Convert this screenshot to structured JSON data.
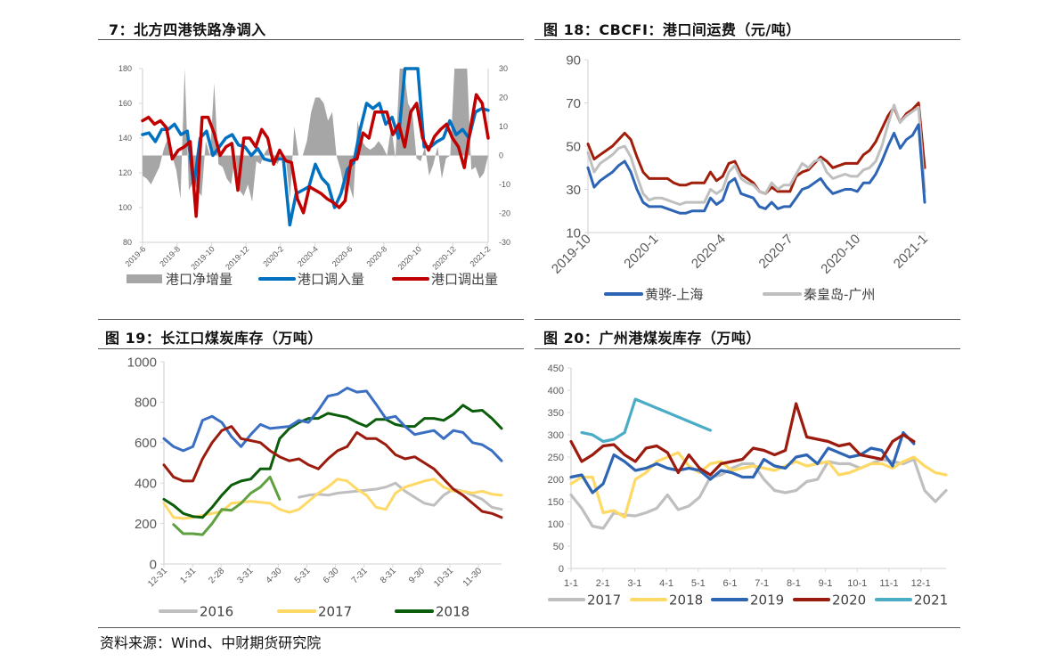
{
  "titles": {
    "c1": "7：北方四港铁路净调入",
    "c2": "图 18：CBCFI：港口间运费（元/吨）",
    "c3": "图 19：长江口煤炭库存（万吨）",
    "c4": "图 20：广州港煤炭库存（万吨）"
  },
  "source": "资料来源：Wind、中财期货研究院",
  "chart_data": [
    {
      "id": "c1",
      "type": "line",
      "title": "7：北方四港铁路净调入",
      "x_ticks": [
        "2019-6",
        "2019-8",
        "2019-10",
        "2019-12",
        "2020-2",
        "2020-4",
        "2020-6",
        "2020-8",
        "2020-10",
        "2020-12",
        "2021-2"
      ],
      "ylim": [
        80,
        180
      ],
      "y_ticks": [
        80,
        100,
        120,
        140,
        160,
        180
      ],
      "y2lim": [
        -30,
        30
      ],
      "y2_ticks": [
        -30,
        -20,
        -10,
        0,
        10,
        20,
        30
      ],
      "series": [
        {
          "name": "港口净增量",
          "axis": "right",
          "kind": "area",
          "color": "#A6A6A6",
          "values": [
            -7,
            -8,
            -10,
            -7,
            -4,
            2,
            6,
            0,
            -5,
            -15,
            30,
            -12,
            -9,
            -12,
            -14,
            5,
            0,
            25,
            -3,
            -4,
            -8,
            -10,
            0,
            -12,
            -14,
            -10,
            -16,
            -2,
            -3,
            1,
            3,
            -1,
            -3,
            0,
            -1,
            -15,
            10,
            0,
            0,
            5,
            15,
            20,
            20,
            18,
            12,
            15,
            0,
            -5,
            -13,
            -10,
            -15,
            12,
            5,
            3,
            2,
            3,
            5,
            3,
            0,
            10,
            -1,
            30,
            30,
            18,
            15,
            -1,
            -2,
            3,
            -7,
            -3,
            3,
            -8,
            -1,
            0,
            30,
            30,
            30,
            30,
            -5,
            -4,
            -8,
            -6,
            0
          ]
        },
        {
          "name": "港口调入量",
          "axis": "left",
          "kind": "line",
          "color": "#0070C0",
          "values": [
            142,
            143,
            138,
            145,
            145,
            148,
            142,
            144,
            112,
            140,
            144,
            130,
            135,
            140,
            142,
            136,
            135,
            130,
            134,
            128,
            127,
            128,
            128,
            90,
            108,
            110,
            112,
            125,
            117,
            113,
            100,
            108,
            122,
            126,
            145,
            160,
            157,
            160,
            148,
            152,
            140,
            180,
            182,
            180,
            135,
            135,
            138,
            140,
            150,
            142,
            145,
            140,
            155,
            157,
            156
          ]
        },
        {
          "name": "港口调出量",
          "axis": "left",
          "kind": "line",
          "color": "#C00000",
          "values": [
            150,
            152,
            148,
            150,
            146,
            128,
            133,
            135,
            138,
            95,
            152,
            152,
            143,
            130,
            135,
            137,
            110,
            140,
            140,
            135,
            145,
            140,
            125,
            133,
            127,
            126,
            105,
            97,
            112,
            110,
            108,
            105,
            103,
            100,
            104,
            127,
            128,
            143,
            140,
            155,
            155,
            155,
            142,
            148,
            135,
            155,
            160,
            140,
            133,
            141,
            145,
            148,
            140,
            135,
            123,
            145,
            165,
            160,
            140
          ]
        }
      ]
    },
    {
      "id": "c2",
      "type": "line",
      "title": "图 18：CBCFI：港口间运费（元/吨）",
      "x_ticks": [
        "2019-10",
        "2020-1",
        "2020-4",
        "2020-7",
        "2020-10",
        "2021-1"
      ],
      "ylim": [
        10,
        90
      ],
      "y_ticks": [
        10,
        30,
        50,
        70,
        90
      ],
      "series": [
        {
          "name": "",
          "color": "#A01E0A",
          "legend": false,
          "values": [
            51,
            44,
            46,
            48,
            50,
            53,
            56,
            53,
            45,
            38,
            35,
            35,
            35,
            35,
            33,
            32,
            32,
            33,
            33,
            33,
            38,
            34,
            36,
            42,
            43,
            37,
            35,
            33,
            29,
            28,
            31,
            29,
            29,
            29,
            36,
            38,
            39,
            42,
            45,
            43,
            40,
            41,
            42,
            42,
            42,
            46,
            48,
            52,
            58,
            64,
            68,
            61,
            65,
            67,
            70,
            40
          ]
        },
        {
          "name": "秦皇岛-广州",
          "color": "#BFBFBF",
          "values": [
            47,
            38,
            42,
            44,
            46,
            49,
            50,
            45,
            36,
            28,
            25,
            26,
            26,
            25,
            24,
            23,
            24,
            24,
            24,
            24,
            30,
            28,
            30,
            38,
            41,
            35,
            33,
            32,
            29,
            28,
            33,
            30,
            32,
            32,
            37,
            42,
            40,
            43,
            44,
            38,
            35,
            36,
            37,
            36,
            36,
            39,
            40,
            43,
            50,
            60,
            69,
            61,
            64,
            66,
            68,
            29
          ]
        },
        {
          "name": "黄骅-上海",
          "color": "#2E64B4",
          "values": [
            40,
            31,
            34,
            36,
            38,
            41,
            43,
            38,
            30,
            24,
            22,
            22,
            22,
            21,
            20,
            19,
            19,
            20,
            20,
            20,
            26,
            23,
            25,
            33,
            35,
            28,
            27,
            26,
            22,
            21,
            24,
            21,
            22,
            22,
            26,
            30,
            31,
            33,
            35,
            31,
            28,
            29,
            30,
            30,
            29,
            33,
            33,
            37,
            43,
            50,
            56,
            49,
            53,
            55,
            60,
            24
          ]
        }
      ]
    },
    {
      "id": "c3",
      "type": "line",
      "title": "图 19：长江口煤炭库存（万吨）",
      "x_ticks": [
        "12-31",
        "1-31",
        "2-28",
        "3-31",
        "4-30",
        "5-31",
        "6-30",
        "7-31",
        "8-31",
        "9-30",
        "10-31",
        "11-30"
      ],
      "ylim": [
        0,
        1000
      ],
      "y_ticks": [
        0,
        200,
        400,
        600,
        800,
        1000
      ],
      "series": [
        {
          "name": "2016",
          "color": "#BFBFBF",
          "values": [
            null,
            null,
            null,
            null,
            null,
            null,
            null,
            null,
            null,
            null,
            null,
            null,
            null,
            null,
            330,
            340,
            345,
            340,
            350,
            355,
            360,
            365,
            370,
            380,
            400,
            360,
            330,
            300,
            290,
            340,
            370,
            360,
            340,
            320,
            280,
            270
          ]
        },
        {
          "name": "2017",
          "color": "#FFD966",
          "values": [
            300,
            230,
            225,
            230,
            240,
            250,
            260,
            300,
            305,
            310,
            305,
            300,
            270,
            255,
            270,
            310,
            350,
            380,
            420,
            410,
            370,
            340,
            280,
            270,
            350,
            380,
            395,
            410,
            420,
            380,
            360,
            360,
            350,
            360,
            345,
            340
          ]
        },
        {
          "name": "2018",
          "color": "#0B5D0B",
          "values": [
            320,
            290,
            250,
            235,
            230,
            280,
            340,
            390,
            410,
            420,
            470,
            470,
            620,
            670,
            700,
            720,
            720,
            745,
            735,
            725,
            700,
            680,
            715,
            715,
            690,
            680,
            680,
            720,
            720,
            710,
            740,
            785,
            755,
            760,
            720,
            670
          ]
        },
        {
          "name": "",
          "legend": false,
          "color": "#3A6FC4",
          "values": [
            620,
            580,
            560,
            580,
            710,
            730,
            700,
            630,
            580,
            640,
            690,
            670,
            675,
            680,
            710,
            700,
            760,
            830,
            840,
            870,
            850,
            855,
            790,
            720,
            730,
            680,
            640,
            650,
            660,
            620,
            660,
            650,
            600,
            590,
            560,
            510
          ]
        },
        {
          "name": "",
          "legend": false,
          "color": "#9B1B0E",
          "values": [
            490,
            430,
            410,
            410,
            520,
            600,
            660,
            680,
            620,
            610,
            600,
            560,
            530,
            510,
            520,
            490,
            470,
            520,
            560,
            580,
            650,
            620,
            620,
            590,
            540,
            520,
            530,
            500,
            470,
            420,
            370,
            340,
            300,
            260,
            250,
            230
          ]
        },
        {
          "name": "",
          "legend": false,
          "color": "#5FA040",
          "values": [
            null,
            195,
            150,
            150,
            145,
            200,
            270,
            265,
            300,
            350,
            380,
            430,
            320,
            null,
            null,
            null,
            null,
            null,
            null,
            null,
            null,
            null,
            null,
            null,
            null,
            null,
            null,
            null,
            null,
            null,
            null,
            null,
            null,
            null,
            null,
            null
          ]
        }
      ]
    },
    {
      "id": "c4",
      "type": "line",
      "title": "图 20：广州港煤炭库存（万吨）",
      "x_ticks": [
        "1-1",
        "2-1",
        "3-1",
        "4-1",
        "5-1",
        "6-1",
        "7-1",
        "8-1",
        "9-1",
        "10-1",
        "11-1",
        "12-1"
      ],
      "ylim": [
        0,
        450
      ],
      "y_ticks": [
        0,
        50,
        100,
        150,
        200,
        250,
        300,
        350,
        400,
        450
      ],
      "series": [
        {
          "name": "2017",
          "color": "#BFBFBF",
          "values": [
            165,
            135,
            95,
            90,
            125,
            120,
            118,
            125,
            135,
            165,
            132,
            140,
            160,
            205,
            210,
            225,
            235,
            235,
            200,
            175,
            170,
            175,
            195,
            200,
            240,
            235,
            235,
            225,
            235,
            245,
            240,
            235,
            245,
            175,
            150,
            175
          ]
        },
        {
          "name": "2018",
          "color": "#FFD966",
          "values": [
            190,
            205,
            205,
            125,
            130,
            115,
            200,
            215,
            240,
            250,
            260,
            230,
            215,
            235,
            240,
            220,
            225,
            230,
            225,
            220,
            230,
            240,
            230,
            235,
            240,
            210,
            215,
            225,
            235,
            235,
            225,
            240,
            250,
            230,
            215,
            210
          ]
        },
        {
          "name": "2019",
          "color": "#2E64B4",
          "values": [
            205,
            210,
            170,
            190,
            255,
            240,
            220,
            225,
            235,
            225,
            220,
            225,
            220,
            200,
            220,
            215,
            205,
            205,
            245,
            230,
            225,
            250,
            255,
            235,
            270,
            260,
            250,
            255,
            270,
            265,
            230,
            305,
            280,
            null,
            null,
            null
          ]
        },
        {
          "name": "2020",
          "color": "#9B1B0E",
          "values": [
            285,
            240,
            255,
            275,
            278,
            255,
            240,
            270,
            275,
            260,
            215,
            255,
            225,
            210,
            235,
            240,
            245,
            270,
            265,
            255,
            265,
            370,
            295,
            290,
            285,
            275,
            280,
            255,
            250,
            245,
            285,
            300,
            285,
            null,
            null,
            null
          ]
        },
        {
          "name": "2021",
          "color": "#4BACC6",
          "values": [
            null,
            305,
            300,
            285,
            290,
            305,
            380,
            370,
            360,
            350,
            340,
            330,
            320,
            310,
            null,
            null,
            null,
            null,
            null,
            null,
            null,
            null,
            null,
            null,
            null,
            null,
            null,
            null,
            null,
            null,
            null,
            null,
            null,
            null,
            null,
            null
          ]
        }
      ]
    }
  ]
}
